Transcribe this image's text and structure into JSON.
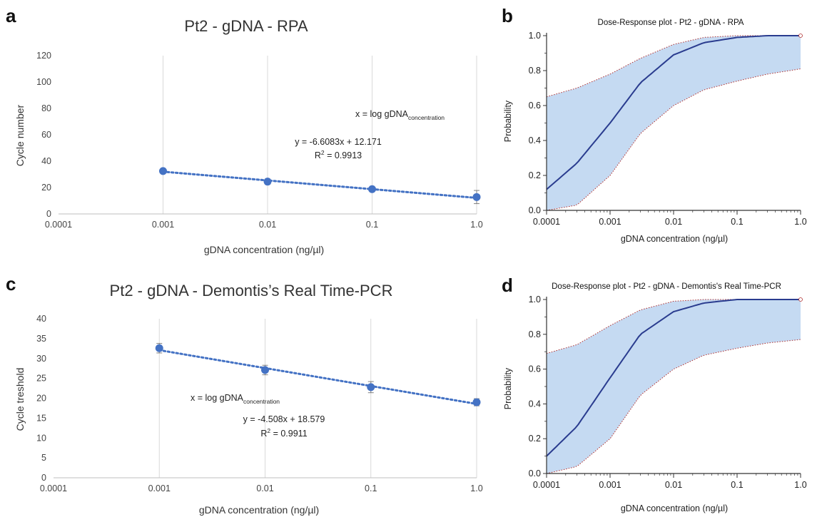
{
  "panels": [
    {
      "label": "a"
    },
    {
      "label": "b"
    },
    {
      "label": "c"
    },
    {
      "label": "d"
    }
  ],
  "chart_data": [
    {
      "type": "scatter",
      "panel": "a",
      "title": "Pt2 - gDNA - RPA",
      "xlabel": "gDNA concentration (ng/µl)",
      "ylabel": "Cycle number",
      "x_scale": "log",
      "xlim": [
        0.0001,
        1.0
      ],
      "ylim": [
        0,
        120
      ],
      "x_ticks": [
        "0.0001",
        "0.001",
        "0.01",
        "0.1",
        "1.0"
      ],
      "y_ticks": [
        "0",
        "20",
        "40",
        "60",
        "80",
        "100",
        "120"
      ],
      "grid": "vertical",
      "series": [
        {
          "x": [
            0.001,
            0.01,
            0.1,
            1.0
          ],
          "y": [
            32.5,
            24.5,
            18.8,
            12.8
          ],
          "yerr": [
            1.2,
            2.0,
            1.5,
            5.0
          ]
        }
      ],
      "trendline": {
        "style": "dotted",
        "slope": -6.6083,
        "intercept": 12.171
      },
      "annotations": {
        "x_def_prefix": "x = log gDNA",
        "x_def_sub": "concentration",
        "equation": "y = -6.6083x + 12.171",
        "r2_prefix": "R",
        "r2_sup": "2",
        "r2_value": " = 0.9913"
      },
      "colors": {
        "marker": "#4472c4",
        "grid": "#d9d9d9"
      }
    },
    {
      "type": "line",
      "panel": "b",
      "title": "Dose-Response plot - Pt2 - gDNA - RPA",
      "xlabel": "gDNA concentration (ng/µl)",
      "ylabel": "Probability",
      "x_scale": "log",
      "xlim": [
        0.0001,
        1.0
      ],
      "ylim": [
        0.0,
        1.0
      ],
      "x_ticks": [
        "0.0001",
        "0.001",
        "0.01",
        "0.1",
        "1.0"
      ],
      "y_ticks": [
        "0.0",
        "0.2",
        "0.4",
        "0.6",
        "0.8",
        "1.0"
      ],
      "x": [
        0.0001,
        0.0003,
        0.001,
        0.003,
        0.01,
        0.03,
        0.1,
        0.3,
        1.0
      ],
      "fit": [
        0.12,
        0.27,
        0.5,
        0.73,
        0.89,
        0.96,
        0.99,
        1.0,
        1.0
      ],
      "lower": [
        0.0,
        0.03,
        0.2,
        0.44,
        0.6,
        0.69,
        0.74,
        0.78,
        0.81
      ],
      "upper": [
        0.65,
        0.7,
        0.78,
        0.87,
        0.95,
        0.99,
        1.0,
        1.0,
        1.0
      ],
      "colors": {
        "fit": "#2a3c8f",
        "band": "#c5daf2",
        "bound": "#b03030"
      }
    },
    {
      "type": "scatter",
      "panel": "c",
      "title": "Pt2 - gDNA - Demontis’s Real Time-PCR",
      "xlabel": "gDNA concentration (ng/µl)",
      "ylabel": "Cycle treshold",
      "x_scale": "log",
      "xlim": [
        0.0001,
        1.0
      ],
      "ylim": [
        0,
        40
      ],
      "x_ticks": [
        "0.0001",
        "0.001",
        "0.01",
        "0.1",
        "1.0"
      ],
      "y_ticks": [
        "0",
        "5",
        "10",
        "15",
        "20",
        "25",
        "30",
        "35",
        "40"
      ],
      "grid": "vertical",
      "series": [
        {
          "x": [
            0.001,
            0.01,
            0.1,
            1.0
          ],
          "y": [
            32.6,
            27.1,
            22.8,
            19.0
          ],
          "yerr": [
            1.2,
            1.2,
            1.4,
            0.9
          ]
        }
      ],
      "trendline": {
        "style": "dotted",
        "slope": -4.508,
        "intercept": 18.579
      },
      "annotations": {
        "x_def_prefix": "x = log gDNA",
        "x_def_sub": "concentration",
        "equation": "y = -4.508x + 18.579",
        "r2_prefix": "R",
        "r2_sup": "2",
        "r2_value": " = 0.9911"
      },
      "colors": {
        "marker": "#4472c4",
        "grid": "#d9d9d9"
      }
    },
    {
      "type": "line",
      "panel": "d",
      "title": "Dose-Response plot - Pt2 - gDNA - Demontis's Real Time-PCR",
      "xlabel": "gDNA concentration (ng/µl)",
      "ylabel": "Probability",
      "x_scale": "log",
      "xlim": [
        0.0001,
        1.0
      ],
      "ylim": [
        0.0,
        1.0
      ],
      "x_ticks": [
        "0.0001",
        "0.001",
        "0.01",
        "0.1",
        "1.0"
      ],
      "y_ticks": [
        "0.0",
        "0.2",
        "0.4",
        "0.6",
        "0.8",
        "1.0"
      ],
      "x": [
        0.0001,
        0.0003,
        0.001,
        0.003,
        0.01,
        0.03,
        0.1,
        0.3,
        1.0
      ],
      "fit": [
        0.1,
        0.27,
        0.55,
        0.8,
        0.93,
        0.98,
        1.0,
        1.0,
        1.0
      ],
      "lower": [
        0.0,
        0.04,
        0.2,
        0.45,
        0.6,
        0.68,
        0.72,
        0.75,
        0.77
      ],
      "upper": [
        0.69,
        0.74,
        0.85,
        0.94,
        0.99,
        1.0,
        1.0,
        1.0,
        1.0
      ],
      "colors": {
        "fit": "#2a3c8f",
        "band": "#c5daf2",
        "bound": "#b03030"
      }
    }
  ]
}
